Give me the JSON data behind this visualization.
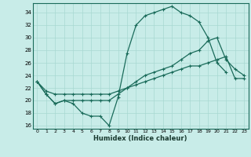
{
  "title": "",
  "xlabel": "Humidex (Indice chaleur)",
  "bg_color": "#c8ece8",
  "line_color": "#1a6b5a",
  "grid_color": "#a8d8d2",
  "xlim": [
    -0.5,
    23.5
  ],
  "ylim": [
    15.5,
    35.5
  ],
  "xticks": [
    0,
    1,
    2,
    3,
    4,
    5,
    6,
    7,
    8,
    9,
    10,
    11,
    12,
    13,
    14,
    15,
    16,
    17,
    18,
    19,
    20,
    21,
    22,
    23
  ],
  "yticks": [
    16,
    18,
    20,
    22,
    24,
    26,
    28,
    30,
    32,
    34
  ],
  "line1_x": [
    0,
    1,
    2,
    3,
    4,
    5,
    6,
    7,
    8,
    9,
    10,
    11,
    12,
    13,
    14,
    15,
    16,
    17,
    18,
    19,
    20,
    21
  ],
  "line1_y": [
    23,
    21,
    19.5,
    20,
    19.5,
    18,
    17.5,
    17.5,
    16,
    20.5,
    27.5,
    32,
    33.5,
    34,
    34.5,
    35,
    34,
    33.5,
    32.5,
    30,
    26,
    24.5
  ],
  "line2_x": [
    0,
    1,
    2,
    3,
    4,
    5,
    6,
    7,
    8,
    9,
    10,
    11,
    12,
    13,
    14,
    15,
    16,
    17,
    18,
    19,
    20,
    21,
    22,
    23
  ],
  "line2_y": [
    23,
    21,
    19.5,
    20,
    20,
    20,
    20,
    20,
    20,
    21,
    22,
    23,
    24,
    24.5,
    25,
    25.5,
    26.5,
    27.5,
    28,
    29.5,
    30,
    26.5,
    25,
    24
  ],
  "line3_x": [
    0,
    1,
    2,
    3,
    4,
    5,
    6,
    7,
    8,
    9,
    10,
    11,
    12,
    13,
    14,
    15,
    16,
    17,
    18,
    19,
    20,
    21,
    22,
    23
  ],
  "line3_y": [
    23,
    21.5,
    21,
    21,
    21,
    21,
    21,
    21,
    21,
    21.5,
    22,
    22.5,
    23,
    23.5,
    24,
    24.5,
    25,
    25.5,
    25.5,
    26,
    26.5,
    27,
    23.5,
    23.5
  ]
}
